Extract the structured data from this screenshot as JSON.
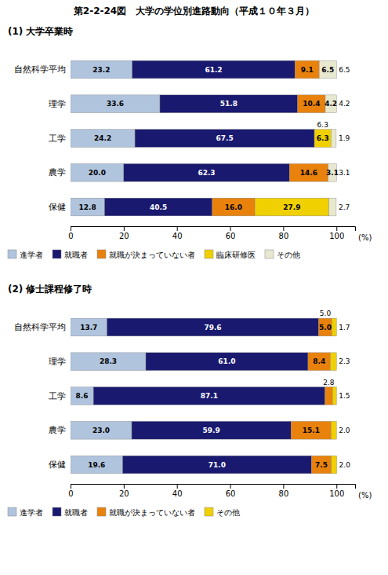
{
  "title": "第2-2-24図　大学の学位別進路動向（平成１０年３月）",
  "chart_data": [
    {
      "type": "bar",
      "orientation": "horizontal",
      "stacked": true,
      "data_labels": true,
      "legend": "bottom",
      "grid": false,
      "title": "(1) 大学卒業時",
      "xlabel": "(%)",
      "categories": [
        "自然科学平均",
        "理学",
        "工学",
        "農学",
        "保健"
      ],
      "xlim": [
        0,
        107
      ],
      "xticks": [
        0,
        20,
        40,
        60,
        80,
        100
      ],
      "series": [
        {
          "name": "進学者",
          "color": "#b0c4de",
          "values": [
            23.2,
            33.6,
            24.2,
            20.0,
            12.8
          ],
          "value_labels": [
            "23.2",
            "33.6",
            "24.2",
            "20.0",
            "12.8"
          ]
        },
        {
          "name": "就職者",
          "color": "#191970",
          "values": [
            61.2,
            51.8,
            67.5,
            62.3,
            40.5
          ],
          "value_labels": [
            "61.2",
            "51.8",
            "67.5",
            "62.3",
            "40.5"
          ]
        },
        {
          "name": "就職が決まっていない者",
          "color": "#e8820c",
          "values": [
            9.1,
            10.4,
            0.0,
            14.6,
            16.0
          ],
          "value_labels": [
            "9.1",
            "10.4",
            null,
            "14.6",
            "16.0"
          ]
        },
        {
          "name": "臨床研修医",
          "color": "#f0d000",
          "values": [
            0.0,
            0.0,
            6.3,
            0.0,
            27.9
          ],
          "value_labels": [
            null,
            null,
            "6.3",
            null,
            "27.9"
          ],
          "above_labels": [
            null,
            null,
            "6.3",
            null,
            null
          ]
        },
        {
          "name": "その他",
          "color": "#e8e8d0",
          "values": [
            6.5,
            4.2,
            1.9,
            3.1,
            2.7
          ],
          "value_labels": [
            "6.5",
            "4.2",
            null,
            "3.1",
            null
          ]
        }
      ],
      "end_labels": [
        "6.5",
        "4.2",
        "1.9",
        "3.1",
        "2.7"
      ]
    },
    {
      "type": "bar",
      "orientation": "horizontal",
      "stacked": true,
      "data_labels": true,
      "legend": "bottom",
      "grid": false,
      "title": "(2) 修士課程修了時",
      "xlabel": "(%)",
      "categories": [
        "自然科学平均",
        "理学",
        "工学",
        "農学",
        "保健"
      ],
      "xlim": [
        0,
        107
      ],
      "xticks": [
        0,
        20,
        40,
        60,
        80,
        100
      ],
      "series": [
        {
          "name": "進学者",
          "color": "#b0c4de",
          "values": [
            13.7,
            28.3,
            8.6,
            23.0,
            19.6
          ],
          "value_labels": [
            "13.7",
            "28.3",
            "8.6",
            "23.0",
            "19.6"
          ]
        },
        {
          "name": "就職者",
          "color": "#191970",
          "values": [
            79.6,
            61.0,
            87.1,
            59.9,
            71.0
          ],
          "value_labels": [
            "79.6",
            "61.0",
            "87.1",
            "59.9",
            "71.0"
          ]
        },
        {
          "name": "就職が決まっていない者",
          "color": "#e8820c",
          "values": [
            5.0,
            8.4,
            2.8,
            15.1,
            7.5
          ],
          "value_labels": [
            "5.0",
            "8.4",
            null,
            "15.1",
            "7.5"
          ],
          "above_labels": [
            "5.0",
            null,
            "2.8",
            null,
            null
          ]
        },
        {
          "name": "その他",
          "color": "#f0d000",
          "values": [
            1.7,
            2.3,
            1.5,
            2.0,
            2.0
          ],
          "value_labels": [
            null,
            null,
            null,
            null,
            null
          ]
        }
      ],
      "end_labels": [
        "1.7",
        "2.3",
        "1.5",
        "2.0",
        "2.0"
      ]
    }
  ]
}
